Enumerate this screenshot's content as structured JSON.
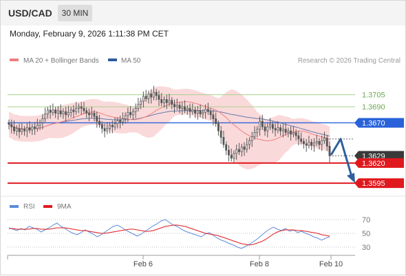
{
  "header": {
    "symbol": "USD/CAD",
    "timeframe": "30 MIN",
    "datetime": "Monday, February 9, 2026 1:11:38 PM CET"
  },
  "legend": {
    "ma20": "MA 20 + Bollinger Bands",
    "ma50": "MA 50",
    "credit": "Research © 2026 Trading Central",
    "rsi": "RSI",
    "rsi_ma": "9MA"
  },
  "colors": {
    "ma20": "#ee7f7f",
    "ma50": "#2e5a9c",
    "bollinger": "#f9d2d4",
    "resistance": "#a6d089",
    "pivot": "#2962d9",
    "support": "#e0191e",
    "price": "#3a3a3a",
    "arrow": "#2f5f9e",
    "rsi": "#5b8bd9",
    "rsi_ma": "#e0191e",
    "candle": "#555555"
  },
  "chart_data": [
    {
      "type": "candlestick",
      "title": "USD/CAD 30 MIN",
      "x_ticks": [
        "Feb 6",
        "Feb 8",
        "Feb 10"
      ],
      "ylim": [
        1.3584,
        1.3738
      ],
      "levels": [
        {
          "label": "1.3705",
          "value": 1.3705,
          "kind": "resistance"
        },
        {
          "label": "1.3690",
          "value": 1.369,
          "kind": "resistance"
        },
        {
          "label": "1.3670",
          "value": 1.367,
          "kind": "pivot"
        },
        {
          "label": "1.3629",
          "value": 1.3629,
          "kind": "last-price"
        },
        {
          "label": "1.3620",
          "value": 1.362,
          "kind": "support"
        },
        {
          "label": "1.3595",
          "value": 1.3595,
          "kind": "support"
        }
      ],
      "closes": [
        1.3668,
        1.3665,
        1.366,
        1.3663,
        1.3659,
        1.3662,
        1.366,
        1.3664,
        1.3661,
        1.3665,
        1.3663,
        1.3667,
        1.367,
        1.3675,
        1.3681,
        1.3686,
        1.3683,
        1.3686,
        1.3682,
        1.3685,
        1.3681,
        1.3684,
        1.368,
        1.3683,
        1.3686,
        1.3684,
        1.3688,
        1.369,
        1.3688,
        1.3685,
        1.3682,
        1.368,
        1.3682,
        1.3678,
        1.3672,
        1.3668,
        1.3663,
        1.366,
        1.3663,
        1.3667,
        1.3665,
        1.3669,
        1.3673,
        1.3671,
        1.3675,
        1.3679,
        1.3683,
        1.368,
        1.3684,
        1.3688,
        1.3693,
        1.3697,
        1.3703,
        1.37,
        1.3706,
        1.3702,
        1.3708,
        1.3704,
        1.3699,
        1.3695,
        1.3699,
        1.3695,
        1.3698,
        1.3693,
        1.369,
        1.3692,
        1.3688,
        1.369,
        1.3686,
        1.3688,
        1.3684,
        1.3686,
        1.3682,
        1.3685,
        1.3681,
        1.3683,
        1.3687,
        1.3684,
        1.368,
        1.3675,
        1.3669,
        1.366,
        1.3652,
        1.3643,
        1.3636,
        1.363,
        1.3626,
        1.3632,
        1.3637,
        1.3634,
        1.364,
        1.3637,
        1.3643,
        1.3648,
        1.3653,
        1.3658,
        1.3662,
        1.3672,
        1.3665,
        1.366,
        1.3665,
        1.3668,
        1.3663,
        1.3661,
        1.3664,
        1.366,
        1.3662,
        1.3658,
        1.366,
        1.3656,
        1.3658,
        1.3654,
        1.365,
        1.3647,
        1.3644,
        1.3642,
        1.3646,
        1.3642,
        1.3645,
        1.3647,
        1.3643,
        1.3648,
        1.3651,
        1.3641,
        1.3629
      ],
      "series": [
        {
          "name": "MA 20 + Bollinger Bands",
          "role": "ma20"
        },
        {
          "name": "MA 50",
          "role": "ma50"
        }
      ],
      "projection": {
        "from": 1.363,
        "peak": 1.365,
        "target": 1.3595
      }
    },
    {
      "type": "line",
      "title": "RSI",
      "y_ticks": [
        70,
        50,
        30
      ],
      "ylim": [
        20,
        78
      ],
      "series": [
        {
          "name": "RSI",
          "values": [
            58,
            56,
            54,
            57,
            55,
            60,
            58,
            56,
            52,
            55,
            58,
            62,
            65,
            60,
            57,
            53,
            50,
            48,
            51,
            55,
            52,
            49,
            45,
            48,
            52,
            56,
            60,
            62,
            59,
            55,
            52,
            49,
            46,
            49,
            53,
            57,
            61,
            64,
            68,
            70,
            66,
            62,
            60,
            56,
            53,
            51,
            49,
            47,
            45,
            49,
            51,
            47,
            43,
            40,
            38,
            35,
            33,
            30,
            28,
            31,
            34,
            38,
            42,
            47,
            52,
            56,
            59,
            56,
            54,
            57,
            53,
            55,
            51,
            53,
            50,
            48,
            45,
            43,
            40,
            43,
            45
          ]
        },
        {
          "name": "9MA",
          "values": [
            57,
            57,
            56,
            56,
            56,
            56,
            57,
            57,
            56,
            56,
            56,
            57,
            58,
            58,
            58,
            57,
            56,
            55,
            54,
            54,
            53,
            52,
            51,
            50,
            50,
            51,
            52,
            53,
            54,
            55,
            56,
            56,
            55,
            54,
            53,
            53,
            54,
            56,
            58,
            60,
            61,
            62,
            62,
            61,
            60,
            58,
            56,
            54,
            52,
            50,
            49,
            48,
            47,
            45,
            43,
            41,
            39,
            37,
            35,
            34,
            33,
            34,
            36,
            38,
            41,
            45,
            49,
            52,
            54,
            55,
            55,
            55,
            54,
            54,
            53,
            52,
            51,
            50,
            48,
            47,
            46
          ]
        }
      ]
    }
  ]
}
